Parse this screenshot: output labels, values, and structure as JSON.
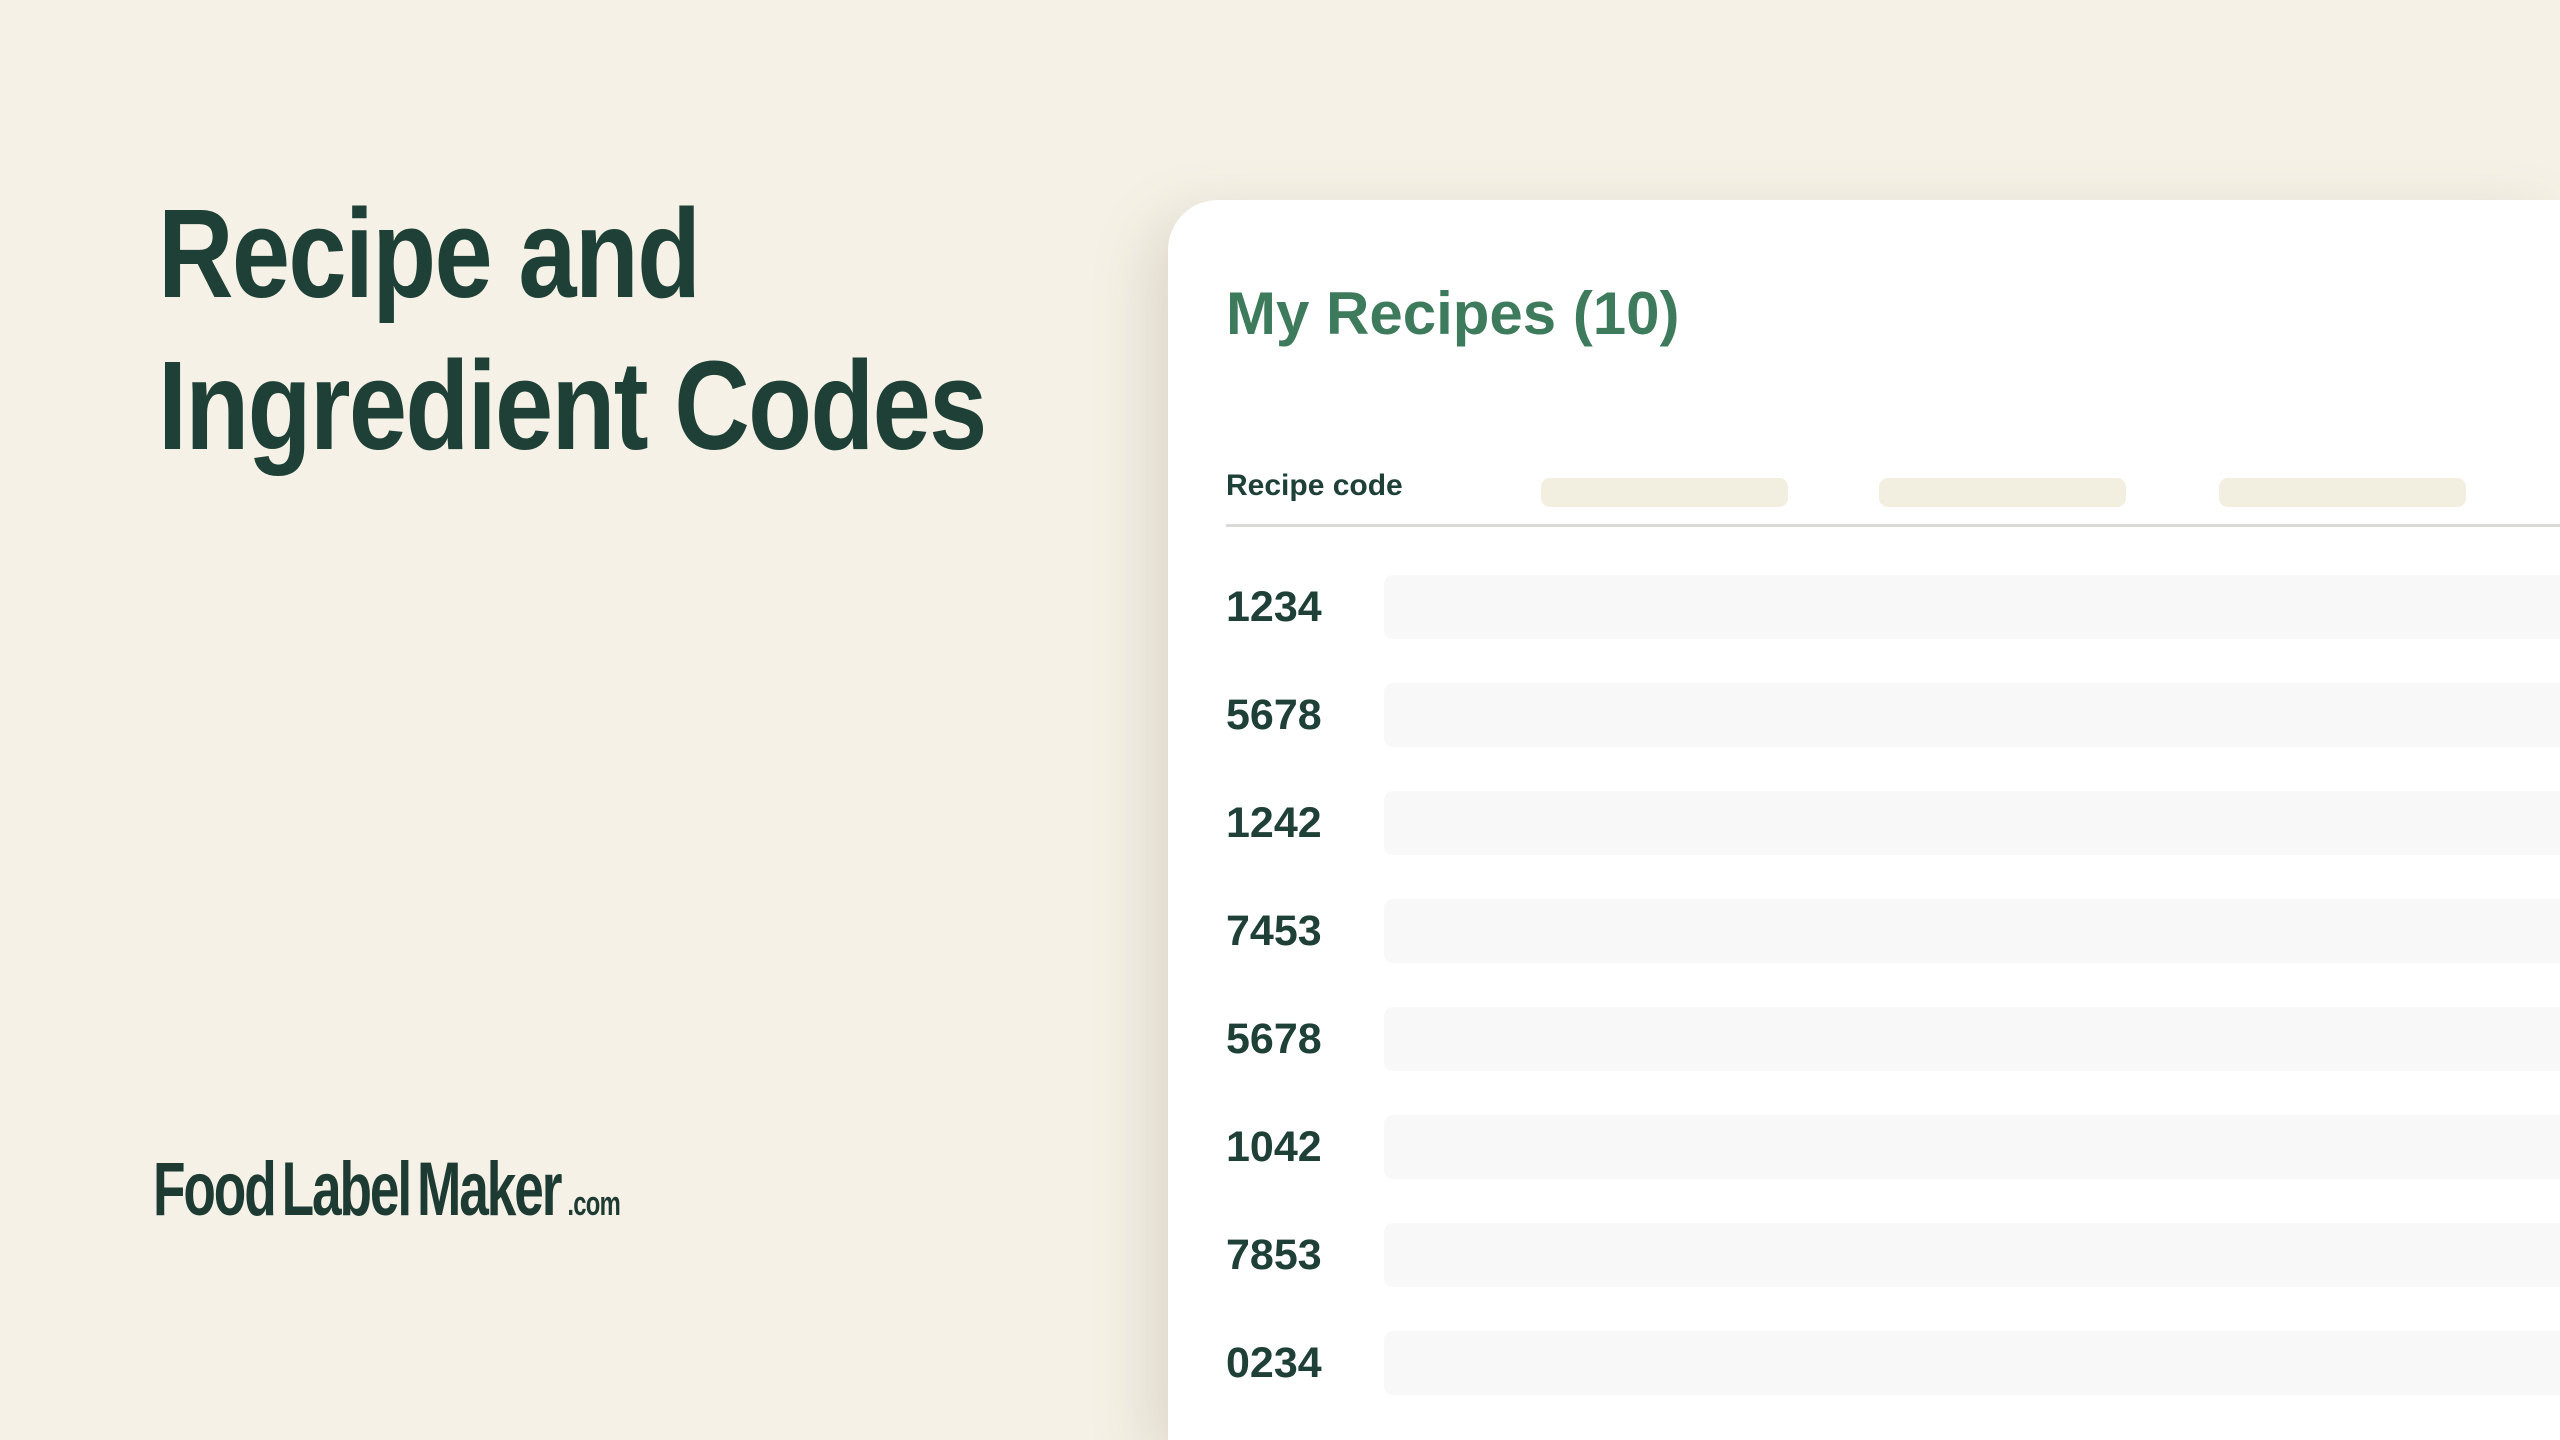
{
  "page": {
    "background_color": "#f5f1e6",
    "heading_line1": "Recipe and",
    "heading_line2": "Ingredient Codes",
    "heading_color": "#1e4037"
  },
  "logo": {
    "part1": "Food",
    "part2": "Label",
    "part3": "Maker",
    "suffix": ".com"
  },
  "panel": {
    "title": "My Recipes (10)",
    "title_color": "#3e7b5d",
    "recipe_count": "10",
    "column_header": "Recipe code",
    "header_placeholder_color": "#f2eee0",
    "row_placeholder_color": "#f8f8f8",
    "recipe_codes": [
      "1234",
      "5678",
      "1242",
      "7453",
      "5678",
      "1042",
      "7853",
      "0234"
    ]
  }
}
